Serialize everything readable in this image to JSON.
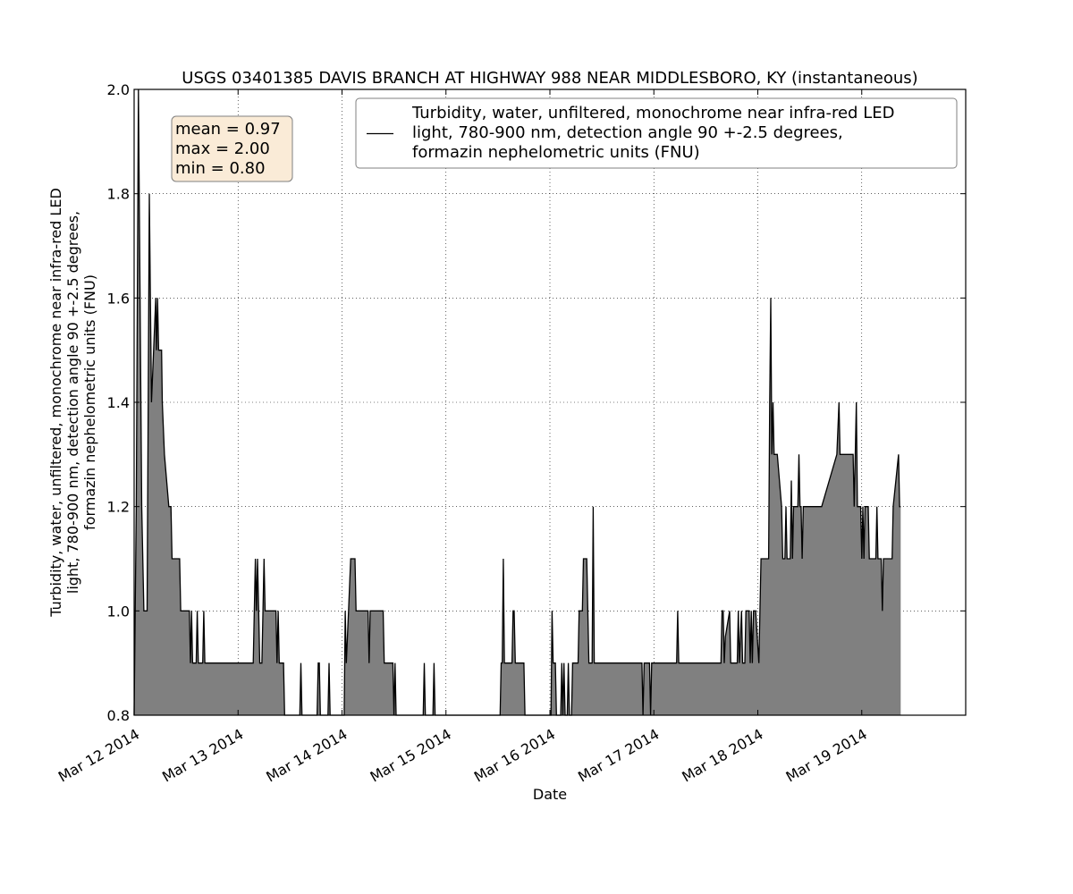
{
  "chart_data": {
    "type": "area",
    "title": "USGS 03401385 DAVIS BRANCH AT HIGHWAY 988 NEAR MIDDLESBORO, KY (instantaneous)",
    "xlabel": "Date",
    "ylabel": "Turbidity, water, unfiltered, monochrome near infra-red LED light, 780-900 nm, detection angle 90 +-2.5 degrees, formazin nephelometric units (FNU)",
    "ylabel_lines": [
      "Turbidity, water, unfiltered, monochrome near infra-red LED",
      "light, 780-900 nm, detection angle 90 +-2.5 degrees,",
      "formazin nephelometric units (FNU)"
    ],
    "xlim": [
      "2014-03-12 00:00",
      "2014-03-20 00:00"
    ],
    "ylim": [
      0.8,
      2.0
    ],
    "xticks": [
      "Mar 12 2014",
      "Mar 13 2014",
      "Mar 14 2014",
      "Mar 15 2014",
      "Mar 16 2014",
      "Mar 17 2014",
      "Mar 18 2014",
      "Mar 19 2014"
    ],
    "yticks": [
      "0.8",
      "1.0",
      "1.2",
      "1.4",
      "1.6",
      "1.8",
      "2.0"
    ],
    "grid": true,
    "fill_color": "#808080",
    "line_color": "#000000",
    "stats_box": {
      "lines": [
        "mean = 0.97",
        "max = 2.00",
        "min = 0.80"
      ],
      "background": "#faebd7",
      "border": "#808080"
    },
    "legend": {
      "placement": "top-right",
      "lines": [
        "Turbidity, water, unfiltered, monochrome near infra-red LED",
        "light, 780-900 nm, detection angle 90 +-2.5 degrees,",
        "formazin nephelometric units (FNU)"
      ]
    },
    "series": [
      {
        "values": [
          [
            "2014-03-12 00:00",
            0.8
          ],
          [
            "2014-03-12 00:15",
            1.0
          ],
          [
            "2014-03-12 00:30",
            1.2
          ],
          [
            "2014-03-12 01:00",
            2.0
          ],
          [
            "2014-03-12 01:45",
            1.2
          ],
          [
            "2014-03-12 02:15",
            1.0
          ],
          [
            "2014-03-12 03:00",
            1.0
          ],
          [
            "2014-03-12 03:30",
            1.8
          ],
          [
            "2014-03-12 04:00",
            1.4
          ],
          [
            "2014-03-12 04:30",
            1.5
          ],
          [
            "2014-03-12 05:00",
            1.6
          ],
          [
            "2014-03-12 05:10",
            1.5
          ],
          [
            "2014-03-12 05:25",
            1.6
          ],
          [
            "2014-03-12 05:40",
            1.5
          ],
          [
            "2014-03-12 06:20",
            1.5
          ],
          [
            "2014-03-12 06:30",
            1.4
          ],
          [
            "2014-03-12 07:00",
            1.3
          ],
          [
            "2014-03-12 08:00",
            1.2
          ],
          [
            "2014-03-12 08:30",
            1.2
          ],
          [
            "2014-03-12 08:45",
            1.1
          ],
          [
            "2014-03-12 10:30",
            1.1
          ],
          [
            "2014-03-12 10:45",
            1.0
          ],
          [
            "2014-03-12 12:45",
            1.0
          ],
          [
            "2014-03-12 13:00",
            0.9
          ],
          [
            "2014-03-12 13:15",
            1.0
          ],
          [
            "2014-03-12 13:30",
            0.9
          ],
          [
            "2014-03-12 14:20",
            0.9
          ],
          [
            "2014-03-12 14:35",
            1.0
          ],
          [
            "2014-03-12 14:50",
            0.9
          ],
          [
            "2014-03-12 15:50",
            0.9
          ],
          [
            "2014-03-12 16:05",
            1.0
          ],
          [
            "2014-03-12 16:20",
            0.9
          ],
          [
            "2014-03-13 03:30",
            0.9
          ],
          [
            "2014-03-13 03:45",
            1.0
          ],
          [
            "2014-03-13 04:00",
            1.1
          ],
          [
            "2014-03-13 04:15",
            1.0
          ],
          [
            "2014-03-13 04:30",
            1.1
          ],
          [
            "2014-03-13 04:45",
            1.0
          ],
          [
            "2014-03-13 05:00",
            0.9
          ],
          [
            "2014-03-13 05:30",
            0.9
          ],
          [
            "2014-03-13 05:45",
            1.0
          ],
          [
            "2014-03-13 06:00",
            1.1
          ],
          [
            "2014-03-13 06:15",
            1.0
          ],
          [
            "2014-03-13 08:45",
            1.0
          ],
          [
            "2014-03-13 09:00",
            0.9
          ],
          [
            "2014-03-13 09:15",
            1.0
          ],
          [
            "2014-03-13 09:30",
            0.9
          ],
          [
            "2014-03-13 10:30",
            0.9
          ],
          [
            "2014-03-13 10:45",
            0.8
          ],
          [
            "2014-03-13 14:15",
            0.8
          ],
          [
            "2014-03-13 14:30",
            0.9
          ],
          [
            "2014-03-13 14:45",
            0.8
          ],
          [
            "2014-03-13 18:15",
            0.8
          ],
          [
            "2014-03-13 18:30",
            0.9
          ],
          [
            "2014-03-13 18:45",
            0.9
          ],
          [
            "2014-03-13 19:00",
            0.8
          ],
          [
            "2014-03-13 20:45",
            0.8
          ],
          [
            "2014-03-13 21:00",
            0.9
          ],
          [
            "2014-03-13 21:15",
            0.8
          ],
          [
            "2014-03-14 00:30",
            0.8
          ],
          [
            "2014-03-14 00:45",
            1.0
          ],
          [
            "2014-03-14 01:00",
            0.9
          ],
          [
            "2014-03-14 01:30",
            1.0
          ],
          [
            "2014-03-14 02:00",
            1.1
          ],
          [
            "2014-03-14 03:00",
            1.1
          ],
          [
            "2014-03-14 03:15",
            1.0
          ],
          [
            "2014-03-14 06:00",
            1.0
          ],
          [
            "2014-03-14 06:15",
            0.9
          ],
          [
            "2014-03-14 06:30",
            1.0
          ],
          [
            "2014-03-14 09:30",
            1.0
          ],
          [
            "2014-03-14 09:45",
            0.9
          ],
          [
            "2014-03-14 11:45",
            0.9
          ],
          [
            "2014-03-14 12:00",
            0.8
          ],
          [
            "2014-03-14 12:15",
            0.9
          ],
          [
            "2014-03-14 12:30",
            0.8
          ],
          [
            "2014-03-14 18:45",
            0.8
          ],
          [
            "2014-03-14 19:00",
            0.9
          ],
          [
            "2014-03-14 19:15",
            0.8
          ],
          [
            "2014-03-14 21:00",
            0.8
          ],
          [
            "2014-03-14 21:15",
            0.9
          ],
          [
            "2014-03-14 21:30",
            0.8
          ],
          [
            "2014-03-15 12:30",
            0.8
          ],
          [
            "2014-03-15 12:45",
            0.9
          ],
          [
            "2014-03-15 13:00",
            0.9
          ],
          [
            "2014-03-15 13:15",
            1.1
          ],
          [
            "2014-03-15 13:30",
            0.9
          ],
          [
            "2014-03-15 15:15",
            0.9
          ],
          [
            "2014-03-15 15:30",
            1.0
          ],
          [
            "2014-03-15 15:45",
            1.0
          ],
          [
            "2014-03-15 16:00",
            0.9
          ],
          [
            "2014-03-15 18:00",
            0.9
          ],
          [
            "2014-03-15 18:15",
            0.8
          ],
          [
            "2014-03-16 00:15",
            0.8
          ],
          [
            "2014-03-16 00:30",
            1.0
          ],
          [
            "2014-03-16 00:45",
            0.9
          ],
          [
            "2014-03-16 01:15",
            0.9
          ],
          [
            "2014-03-16 01:30",
            0.8
          ],
          [
            "2014-03-16 02:30",
            0.8
          ],
          [
            "2014-03-16 02:45",
            0.9
          ],
          [
            "2014-03-16 03:00",
            0.8
          ],
          [
            "2014-03-16 03:15",
            0.9
          ],
          [
            "2014-03-16 03:30",
            0.8
          ],
          [
            "2014-03-16 04:00",
            0.8
          ],
          [
            "2014-03-16 04:15",
            0.9
          ],
          [
            "2014-03-16 04:30",
            0.8
          ],
          [
            "2014-03-16 05:00",
            0.8
          ],
          [
            "2014-03-16 05:15",
            0.9
          ],
          [
            "2014-03-16 06:30",
            0.9
          ],
          [
            "2014-03-16 06:45",
            1.0
          ],
          [
            "2014-03-16 07:30",
            1.0
          ],
          [
            "2014-03-16 07:45",
            1.1
          ],
          [
            "2014-03-16 08:30",
            1.1
          ],
          [
            "2014-03-16 08:45",
            1.0
          ],
          [
            "2014-03-16 09:00",
            0.9
          ],
          [
            "2014-03-16 09:45",
            0.9
          ],
          [
            "2014-03-16 10:00",
            1.2
          ],
          [
            "2014-03-16 10:15",
            0.9
          ],
          [
            "2014-03-16 21:15",
            0.9
          ],
          [
            "2014-03-16 21:30",
            0.8
          ],
          [
            "2014-03-16 21:45",
            0.9
          ],
          [
            "2014-03-16 23:00",
            0.9
          ],
          [
            "2014-03-16 23:15",
            0.8
          ],
          [
            "2014-03-16 23:30",
            0.9
          ],
          [
            "2014-03-17 05:15",
            0.9
          ],
          [
            "2014-03-17 05:30",
            1.0
          ],
          [
            "2014-03-17 05:45",
            0.9
          ],
          [
            "2014-03-17 15:30",
            0.9
          ],
          [
            "2014-03-17 15:45",
            1.0
          ],
          [
            "2014-03-17 16:00",
            1.0
          ],
          [
            "2014-03-17 16:15",
            0.9
          ],
          [
            "2014-03-17 16:30",
            0.95
          ],
          [
            "2014-03-17 17:30",
            1.0
          ],
          [
            "2014-03-17 17:45",
            0.9
          ],
          [
            "2014-03-17 19:15",
            0.9
          ],
          [
            "2014-03-17 19:30",
            1.0
          ],
          [
            "2014-03-17 19:45",
            0.9
          ],
          [
            "2014-03-17 20:15",
            1.0
          ],
          [
            "2014-03-17 20:30",
            0.9
          ],
          [
            "2014-03-17 21:00",
            0.9
          ],
          [
            "2014-03-17 21:15",
            1.0
          ],
          [
            "2014-03-17 22:00",
            1.0
          ],
          [
            "2014-03-17 22:15",
            0.9
          ],
          [
            "2014-03-17 22:30",
            1.0
          ],
          [
            "2014-03-17 22:45",
            0.9
          ],
          [
            "2014-03-17 23:00",
            1.0
          ],
          [
            "2014-03-17 23:30",
            1.0
          ],
          [
            "2014-03-18 00:15",
            0.9
          ],
          [
            "2014-03-18 00:30",
            1.0
          ],
          [
            "2014-03-18 00:45",
            1.1
          ],
          [
            "2014-03-18 02:30",
            1.1
          ],
          [
            "2014-03-18 02:45",
            1.4
          ],
          [
            "2014-03-18 03:00",
            1.6
          ],
          [
            "2014-03-18 03:15",
            1.3
          ],
          [
            "2014-03-18 03:30",
            1.4
          ],
          [
            "2014-03-18 03:45",
            1.3
          ],
          [
            "2014-03-18 04:30",
            1.3
          ],
          [
            "2014-03-18 05:30",
            1.2
          ],
          [
            "2014-03-18 05:45",
            1.1
          ],
          [
            "2014-03-18 06:15",
            1.1
          ],
          [
            "2014-03-18 06:30",
            1.2
          ],
          [
            "2014-03-18 06:45",
            1.1
          ],
          [
            "2014-03-18 07:30",
            1.1
          ],
          [
            "2014-03-18 07:45",
            1.25
          ],
          [
            "2014-03-18 08:00",
            1.1
          ],
          [
            "2014-03-18 08:15",
            1.2
          ],
          [
            "2014-03-18 09:15",
            1.2
          ],
          [
            "2014-03-18 09:30",
            1.3
          ],
          [
            "2014-03-18 09:45",
            1.2
          ],
          [
            "2014-03-18 10:00",
            1.2
          ],
          [
            "2014-03-18 10:15",
            1.1
          ],
          [
            "2014-03-18 10:30",
            1.2
          ],
          [
            "2014-03-18 14:45",
            1.2
          ],
          [
            "2014-03-18 18:15",
            1.3
          ],
          [
            "2014-03-18 18:45",
            1.4
          ],
          [
            "2014-03-18 19:00",
            1.3
          ],
          [
            "2014-03-18 22:00",
            1.3
          ],
          [
            "2014-03-18 22:15",
            1.2
          ],
          [
            "2014-03-18 22:30",
            1.3
          ],
          [
            "2014-03-18 22:45",
            1.4
          ],
          [
            "2014-03-18 23:00",
            1.2
          ],
          [
            "2014-03-18 23:45",
            1.2
          ],
          [
            "2014-03-19 00:00",
            1.1
          ],
          [
            "2014-03-19 00:15",
            1.2
          ],
          [
            "2014-03-19 00:30",
            1.1
          ],
          [
            "2014-03-19 00:45",
            1.2
          ],
          [
            "2014-03-19 01:30",
            1.2
          ],
          [
            "2014-03-19 01:45",
            1.1
          ],
          [
            "2014-03-19 03:15",
            1.1
          ],
          [
            "2014-03-19 03:30",
            1.2
          ],
          [
            "2014-03-19 03:45",
            1.1
          ],
          [
            "2014-03-19 04:30",
            1.1
          ],
          [
            "2014-03-19 04:45",
            1.0
          ],
          [
            "2014-03-19 05:00",
            1.1
          ],
          [
            "2014-03-19 07:00",
            1.1
          ],
          [
            "2014-03-19 07:15",
            1.2
          ],
          [
            "2014-03-19 08:30",
            1.3
          ],
          [
            "2014-03-19 08:45",
            1.2
          ],
          [
            "2014-03-19 09:00",
            1.2
          ]
        ]
      }
    ]
  }
}
